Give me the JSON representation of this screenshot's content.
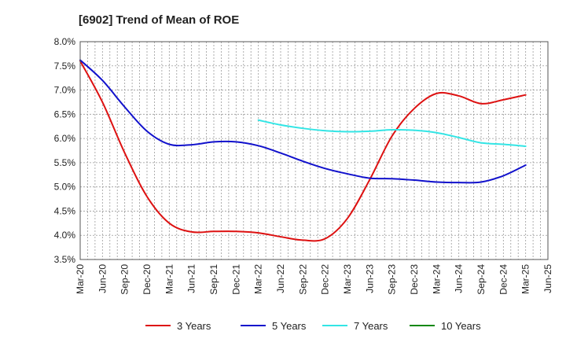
{
  "chart_data": {
    "type": "line",
    "title": "[6902]  Trend of Mean of ROE",
    "xlabel": "",
    "ylabel": "",
    "x_ticks": [
      "Mar-20",
      "Jun-20",
      "Sep-20",
      "Dec-20",
      "Mar-21",
      "Jun-21",
      "Sep-21",
      "Dec-21",
      "Mar-22",
      "Jun-22",
      "Sep-22",
      "Dec-22",
      "Mar-23",
      "Jun-23",
      "Sep-23",
      "Dec-23",
      "Mar-24",
      "Jun-24",
      "Sep-24",
      "Dec-24",
      "Mar-25",
      "Jun-25"
    ],
    "y_ticks": [
      "3.5%",
      "4.0%",
      "4.5%",
      "5.0%",
      "5.5%",
      "6.0%",
      "6.5%",
      "7.0%",
      "7.5%",
      "8.0%"
    ],
    "ylim": [
      3.5,
      8.0
    ],
    "grid": true,
    "legend_position": "bottom",
    "series": [
      {
        "name": "3 Years",
        "color": "#dd1111",
        "values": [
          7.6,
          6.75,
          5.7,
          4.8,
          4.25,
          4.07,
          4.08,
          4.08,
          4.05,
          3.97,
          3.9,
          3.93,
          4.35,
          5.15,
          6.05,
          6.62,
          6.93,
          6.88,
          6.72,
          6.8,
          6.9,
          null
        ]
      },
      {
        "name": "5 Years",
        "color": "#1111cc",
        "values": [
          7.62,
          7.2,
          6.65,
          6.15,
          5.88,
          5.87,
          5.93,
          5.93,
          5.85,
          5.7,
          5.53,
          5.38,
          5.27,
          5.18,
          5.17,
          5.14,
          5.1,
          5.09,
          5.1,
          5.23,
          5.45,
          null
        ]
      },
      {
        "name": "7 Years",
        "color": "#33e5e5",
        "values": [
          null,
          null,
          null,
          null,
          null,
          null,
          null,
          null,
          6.38,
          6.28,
          6.21,
          6.16,
          6.14,
          6.15,
          6.18,
          6.17,
          6.12,
          6.02,
          5.91,
          5.88,
          5.84,
          null
        ]
      },
      {
        "name": "10 Years",
        "color": "#118811",
        "values": [
          null,
          null,
          null,
          null,
          null,
          null,
          null,
          null,
          null,
          null,
          null,
          null,
          null,
          null,
          null,
          null,
          null,
          null,
          null,
          null,
          null,
          null
        ]
      }
    ]
  }
}
